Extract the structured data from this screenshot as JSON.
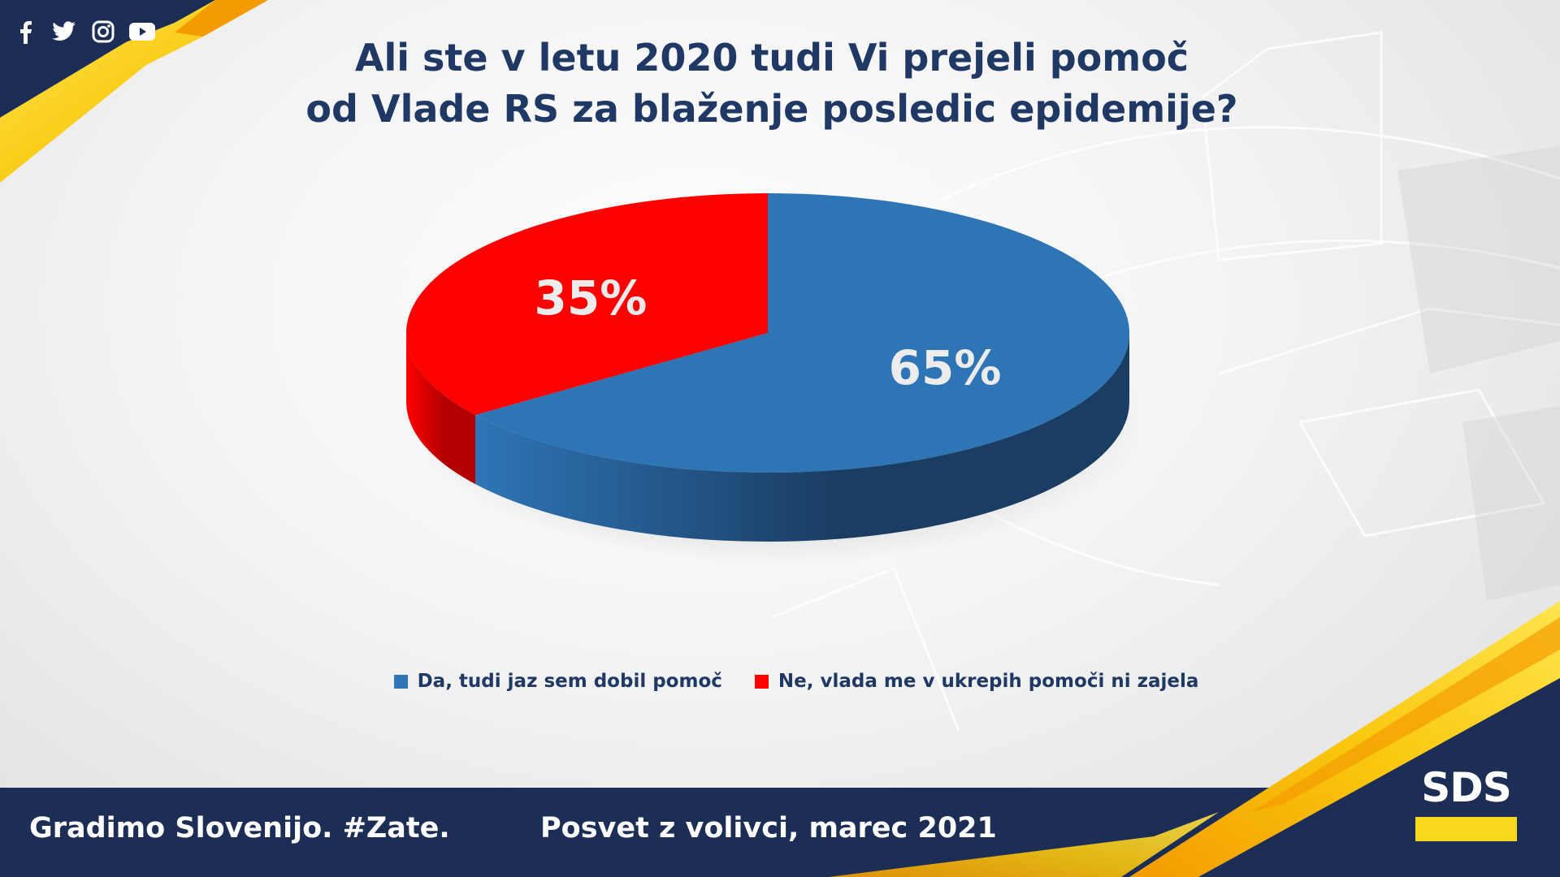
{
  "title": {
    "line1": "Ali ste v letu 2020 tudi Vi prejeli pomoč",
    "line2": "od Vlade RS za blaženje posledic epidemije?"
  },
  "social_icons": [
    "facebook-icon",
    "twitter-icon",
    "instagram-icon",
    "youtube-icon"
  ],
  "chart_data": {
    "type": "pie",
    "style": "3d",
    "slices": [
      {
        "label": "Da, tudi jaz sem dobil pomoč",
        "value": 65,
        "display": "65%",
        "color": "#2e75b6"
      },
      {
        "label": "Ne, vlada me v ukrepih pomoči ni zajela",
        "value": 35,
        "display": "35%",
        "color": "#ff0000"
      }
    ],
    "legend_position": "bottom"
  },
  "footer": {
    "slogan": "Gradimo Slovenijo. #Zate.",
    "event": "Posvet z volivci, marec 2021",
    "logo_text": "SDS"
  },
  "colors": {
    "navy": "#1f3864",
    "footer_bg": "#1c2e55",
    "gold": "#f9c80e",
    "orange": "#f4a000"
  }
}
